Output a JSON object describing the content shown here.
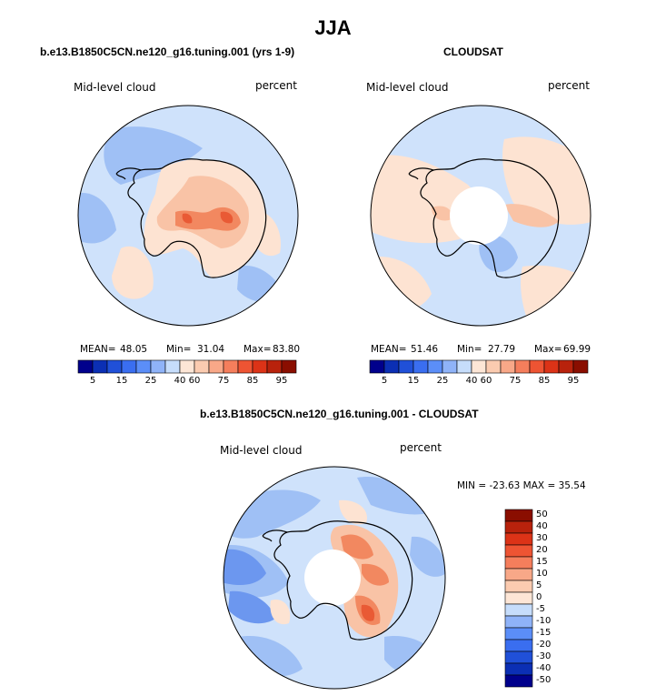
{
  "title": "JJA",
  "panels": [
    {
      "title": "b.e13.B1850C5CN.ne120_g16.tuning.001 (yrs 1-9)",
      "variable_label": "Mid-level cloud",
      "units_label": "percent",
      "stats": {
        "mean_label": "MEAN=",
        "mean": "48.05",
        "min_label": "Min=",
        "min": "31.04",
        "max_label": "Max=",
        "max": "83.80"
      }
    },
    {
      "title": "CLOUDSAT",
      "variable_label": "Mid-level cloud",
      "units_label": "percent",
      "stats": {
        "mean_label": "MEAN=",
        "mean": "51.46",
        "min_label": "Min=",
        "min": "27.79",
        "max_label": "Max=",
        "max": "69.99"
      }
    },
    {
      "title": "b.e13.B1850C5CN.ne120_g16.tuning.001 - CLOUDSAT",
      "variable_label": "Mid-level cloud",
      "units_label": "percent",
      "minmax": "MIN = -23.63 MAX =  35.54"
    }
  ],
  "colorbar_top": {
    "colors": [
      "#00008c",
      "#0b2fb4",
      "#2050d8",
      "#3a6ef0",
      "#5b8ef8",
      "#8fb3f8",
      "#c6ddfb",
      "#fde6d6",
      "#fbcbb0",
      "#f8a888",
      "#f57e5c",
      "#ee5433",
      "#dc3317",
      "#b8220c",
      "#8a0e00"
    ],
    "tick_labels": [
      "5",
      "15",
      "25",
      "40",
      "60",
      "75",
      "85",
      "95"
    ]
  },
  "colorbar_diff": {
    "colors": [
      "#8a0e00",
      "#b8220c",
      "#dc3317",
      "#ee5433",
      "#f57e5c",
      "#f8a888",
      "#fbcbb0",
      "#fde6d6",
      "#c6ddfb",
      "#8fb3f8",
      "#5b8ef8",
      "#3a6ef0",
      "#2050d8",
      "#0b2fb4",
      "#00008c"
    ],
    "tick_labels": [
      "50",
      "40",
      "30",
      "20",
      "15",
      "10",
      "5",
      "0",
      "-5",
      "-10",
      "-15",
      "-20",
      "-30",
      "-40",
      "-50"
    ]
  },
  "map_colors": {
    "light_blue": "#cfe2fb",
    "mid_blue": "#9fc0f5",
    "blue": "#6c97ef",
    "light_peach": "#fde3d2",
    "peach": "#f9c3a6",
    "orange": "#f28860",
    "red_orange": "#e95a35",
    "coast": "#000000"
  }
}
